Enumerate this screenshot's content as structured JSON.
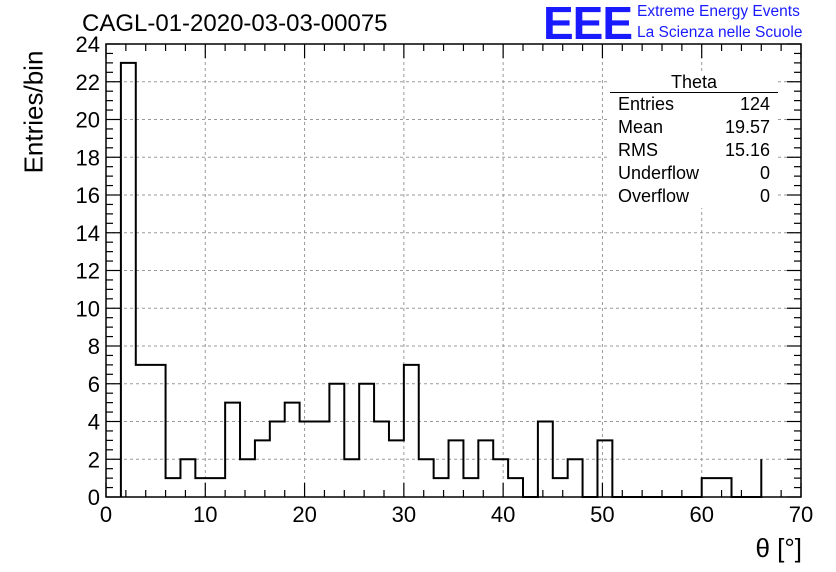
{
  "title": "CAGL-01-2020-03-03-00075",
  "logo": {
    "mark": "EEE",
    "line1": "Extreme Energy Events",
    "line2": "La Scienza nelle Scuole",
    "color": "#1a1aff"
  },
  "stats": {
    "name": "Theta",
    "rows": [
      {
        "label": "Entries",
        "value": "124"
      },
      {
        "label": "Mean",
        "value": "19.57"
      },
      {
        "label": "RMS",
        "value": "15.16"
      },
      {
        "label": "Underflow",
        "value": "0"
      },
      {
        "label": "Overflow",
        "value": "0"
      }
    ]
  },
  "chart_data": {
    "type": "bar",
    "title": "CAGL-01-2020-03-03-00075",
    "xlabel": "θ [°]",
    "ylabel": "Entries/bin",
    "xlim": [
      0,
      70
    ],
    "ylim": [
      0,
      24
    ],
    "x_ticks": [
      0,
      10,
      20,
      30,
      40,
      50,
      60,
      70
    ],
    "y_ticks": [
      0,
      2,
      4,
      6,
      8,
      10,
      12,
      14,
      16,
      18,
      20,
      22,
      24
    ],
    "grid": true,
    "bin_edges": [
      1.5,
      3,
      4.5,
      6,
      7.5,
      9,
      10.5,
      12,
      13.5,
      15,
      16.5,
      18,
      19.5,
      21,
      22.5,
      24,
      25.5,
      27,
      28.5,
      30,
      31.5,
      33,
      34.5,
      36,
      37.5,
      39,
      40.5,
      42,
      43.5,
      45,
      46.5,
      48,
      49.5,
      51,
      52.5,
      54,
      55.5,
      57,
      58.5,
      60,
      61.5,
      63,
      64.5,
      66
    ],
    "values": [
      23,
      7,
      7,
      1,
      2,
      1,
      1,
      5,
      2,
      3,
      4,
      5,
      4,
      4,
      6,
      2,
      6,
      4,
      3,
      7,
      2,
      1,
      3,
      1,
      3,
      2,
      1,
      0,
      4,
      1,
      2,
      0,
      3,
      0,
      0,
      0,
      0,
      0,
      0,
      1,
      1,
      0,
      0,
      2
    ]
  }
}
